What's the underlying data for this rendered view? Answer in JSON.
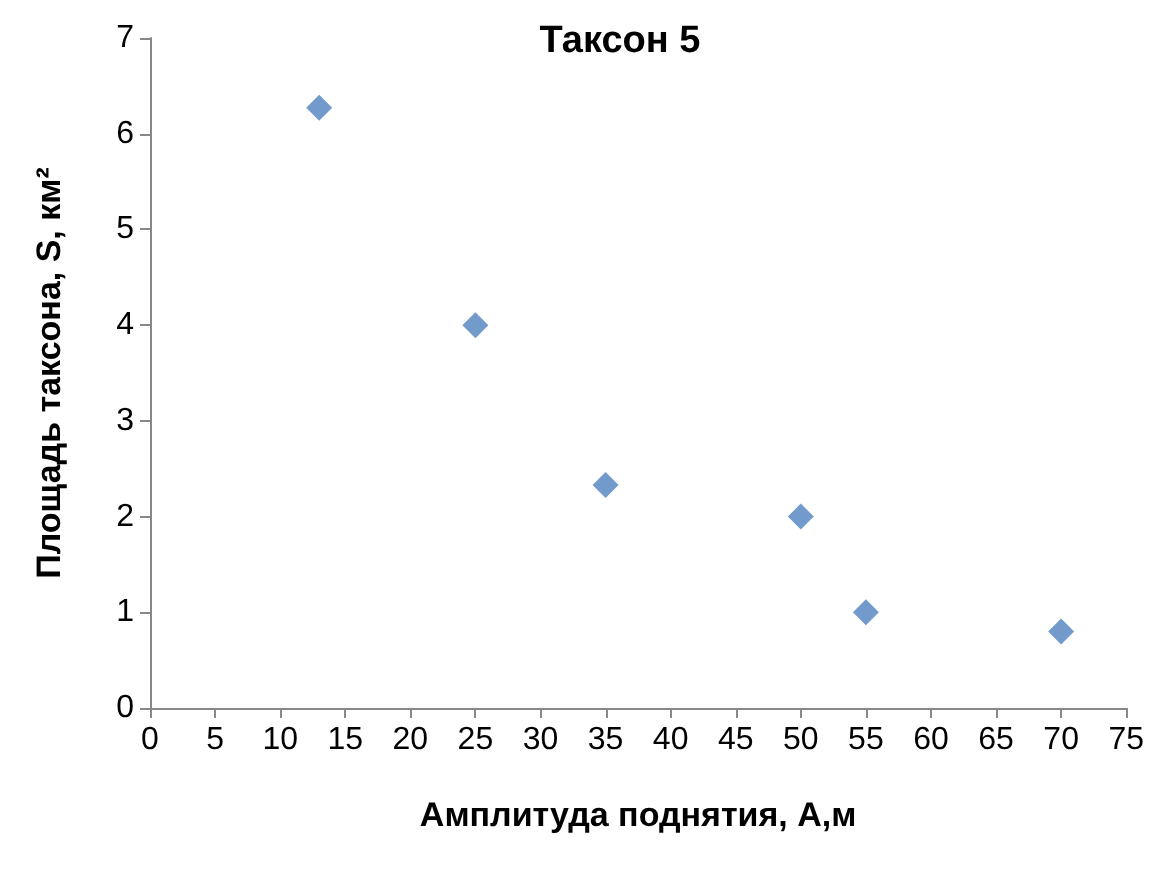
{
  "chart_data": {
    "type": "scatter",
    "title": "Таксон 5",
    "xlabel": "Амплитуда поднятия, А,м",
    "ylabel": "Площадь таксона, S, км²",
    "x": [
      13,
      25,
      35,
      50,
      55,
      70
    ],
    "series": [
      {
        "color": "#4f81bd",
        "values": [
          6.27,
          4.0,
          2.33,
          2.0,
          1.0,
          0.8
        ]
      }
    ],
    "xlim": [
      0,
      75
    ],
    "xticks": [
      0,
      5,
      10,
      15,
      20,
      25,
      30,
      35,
      40,
      45,
      50,
      55,
      60,
      65,
      70,
      75
    ],
    "ylim": [
      0,
      7
    ],
    "yticks": [
      0,
      1,
      2,
      3,
      4,
      5,
      6,
      7
    ],
    "marker": "diamond",
    "grid": false
  }
}
